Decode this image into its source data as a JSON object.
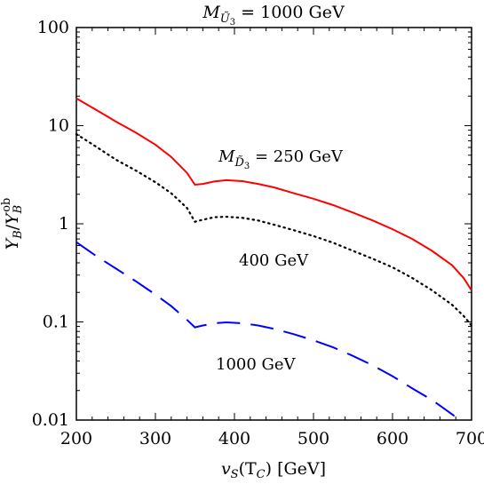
{
  "chart_data": {
    "type": "line",
    "title": "M_Ũ₃ = 1000 GeV",
    "title_parts": {
      "sym": "M",
      "sub": "Ũ",
      "subsub": "3",
      "rest": " = 1000 GeV"
    },
    "xlabel": "v_S(T_C) [GeV]",
    "xlabel_parts": {
      "v": "v",
      "S": "S",
      "arg": "(T",
      "C": "C",
      "rest": ") [GeV]"
    },
    "ylabel": "Y_B/Y_B^ob",
    "ylabel_parts": {
      "Y": "Y",
      "B": "B",
      "slash": "/",
      "sup": "ob"
    },
    "xlim": [
      200,
      700
    ],
    "ylim": [
      0.01,
      100
    ],
    "yscale": "log",
    "grid": false,
    "x_ticks": [
      200,
      300,
      400,
      500,
      600,
      700
    ],
    "x_tick_labels": [
      "200",
      "300",
      "400",
      "500",
      "600",
      "700"
    ],
    "y_ticks": [
      0.01,
      0.1,
      1,
      10,
      100
    ],
    "y_tick_labels": [
      "0.01",
      "0.1",
      "1",
      "10",
      "100"
    ],
    "annotations": {
      "a250": {
        "sym": "M",
        "sub": "D̃",
        "subsub": "3",
        "rest": " = 250 GeV"
      },
      "a400": "400 GeV",
      "a1000": "1000 GeV"
    },
    "series": [
      {
        "color": "#ff0000",
        "dash": "solid",
        "x": [
          200,
          225,
          250,
          275,
          300,
          320,
          340,
          350,
          360,
          375,
          390,
          410,
          430,
          450,
          475,
          500,
          525,
          550,
          575,
          600,
          625,
          650,
          675,
          690,
          700
        ],
        "y": [
          19,
          14.5,
          11,
          8.5,
          6.4,
          4.8,
          3.3,
          2.5,
          2.55,
          2.7,
          2.78,
          2.72,
          2.55,
          2.35,
          2.05,
          1.8,
          1.55,
          1.3,
          1.08,
          0.88,
          0.7,
          0.53,
          0.38,
          0.28,
          0.21
        ]
      },
      {
        "color": "#000000",
        "dash": "dotted",
        "x": [
          200,
          225,
          250,
          275,
          300,
          320,
          340,
          350,
          360,
          375,
          390,
          410,
          430,
          450,
          475,
          500,
          525,
          550,
          575,
          600,
          625,
          650,
          675,
          690,
          700
        ],
        "y": [
          8.2,
          6.1,
          4.5,
          3.5,
          2.65,
          2.05,
          1.45,
          1.05,
          1.1,
          1.17,
          1.18,
          1.15,
          1.08,
          0.98,
          0.86,
          0.75,
          0.64,
          0.53,
          0.44,
          0.36,
          0.28,
          0.21,
          0.15,
          0.115,
          0.092
        ]
      },
      {
        "color": "#0000ff",
        "dash": "dashed",
        "x": [
          200,
          225,
          250,
          275,
          300,
          320,
          340,
          350,
          360,
          375,
          390,
          410,
          430,
          450,
          475,
          500,
          525,
          550,
          575,
          600,
          625,
          650,
          675,
          685
        ],
        "y": [
          0.65,
          0.47,
          0.35,
          0.26,
          0.19,
          0.145,
          0.105,
          0.088,
          0.092,
          0.097,
          0.099,
          0.097,
          0.092,
          0.085,
          0.075,
          0.065,
          0.055,
          0.045,
          0.036,
          0.028,
          0.021,
          0.016,
          0.0115,
          0.01
        ]
      }
    ]
  }
}
